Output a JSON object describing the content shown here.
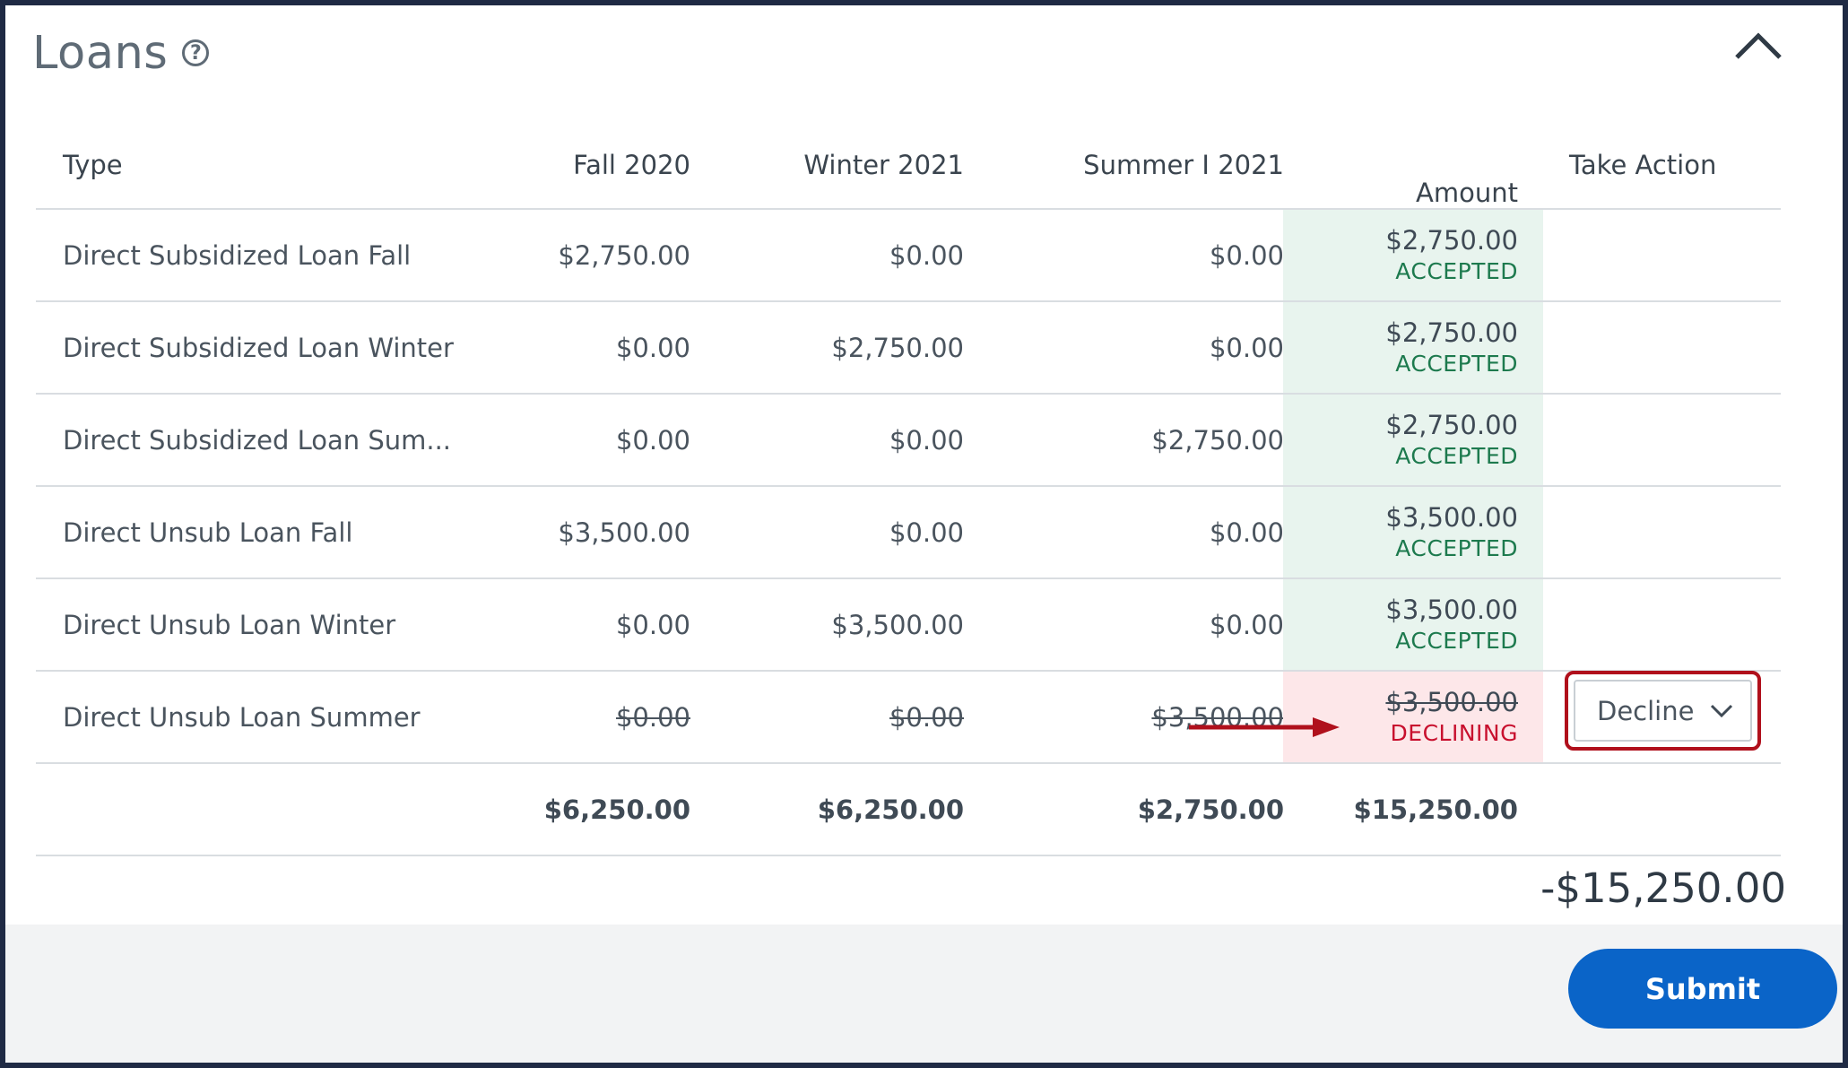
{
  "header": {
    "title": "Loans",
    "help_icon": "question-circle-icon",
    "collapse_icon": "chevron-up-icon"
  },
  "columns": {
    "type": "Type",
    "fall": "Fall 2020",
    "winter": "Winter 2021",
    "summer": "Summer I 2021",
    "amount": "Amount",
    "action": "Take Action"
  },
  "rows": [
    {
      "type": "Direct Subsidized Loan Fall",
      "fall": "$2,750.00",
      "winter": "$0.00",
      "summer": "$0.00",
      "amount": "$2,750.00",
      "status": "ACCEPTED"
    },
    {
      "type": "Direct Subsidized Loan Winter",
      "fall": "$0.00",
      "winter": "$2,750.00",
      "summer": "$0.00",
      "amount": "$2,750.00",
      "status": "ACCEPTED"
    },
    {
      "type": "Direct Subsidized Loan Sum...",
      "fall": "$0.00",
      "winter": "$0.00",
      "summer": "$2,750.00",
      "amount": "$2,750.00",
      "status": "ACCEPTED"
    },
    {
      "type": "Direct Unsub Loan Fall",
      "fall": "$3,500.00",
      "winter": "$0.00",
      "summer": "$0.00",
      "amount": "$3,500.00",
      "status": "ACCEPTED"
    },
    {
      "type": "Direct Unsub Loan Winter",
      "fall": "$0.00",
      "winter": "$3,500.00",
      "summer": "$0.00",
      "amount": "$3,500.00",
      "status": "ACCEPTED"
    },
    {
      "type": "Direct Unsub Loan Summer",
      "fall": "$0.00",
      "winter": "$0.00",
      "summer": "$3,500.00",
      "amount": "$3,500.00",
      "status": "DECLINING",
      "action": "Decline"
    }
  ],
  "totals": {
    "fall": "$6,250.00",
    "winter": "$6,250.00",
    "summer": "$2,750.00",
    "amount": "$15,250.00"
  },
  "grand_total": "-$15,250.00",
  "submit_label": "Submit",
  "colors": {
    "accepted_bg": "#e8f4ee",
    "accepted_text": "#1d7a4e",
    "declining_bg": "#fde7e9",
    "declining_text": "#c8102e",
    "highlight": "#b0101c",
    "submit": "#0a64c8"
  }
}
